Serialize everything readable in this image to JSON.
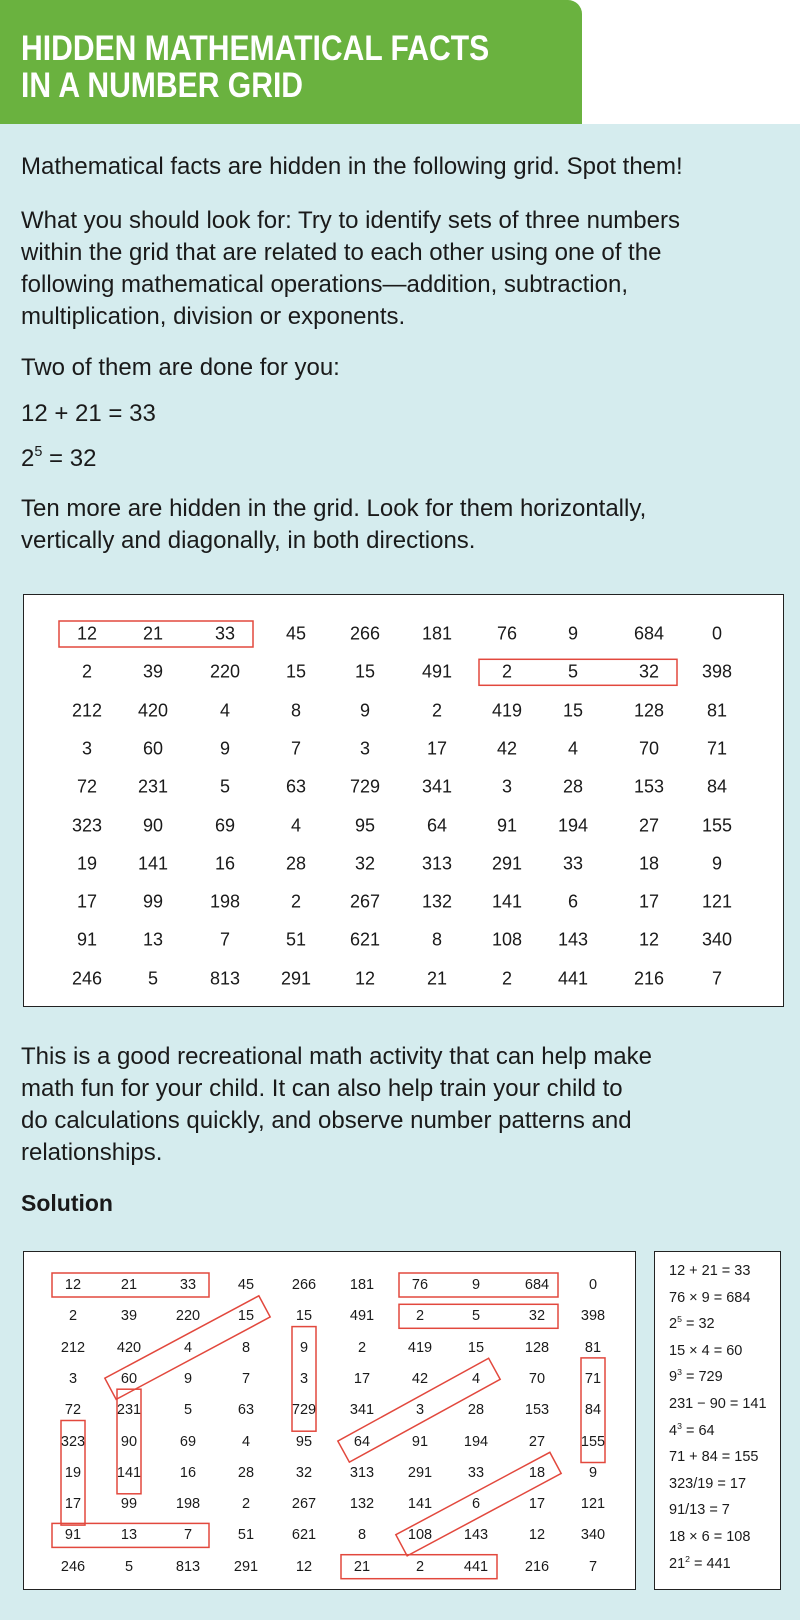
{
  "header": {
    "title_line1": "HIDDEN MATHEMATICAL FACTS",
    "title_line2": "IN A NUMBER GRID",
    "color": "#6ab23f"
  },
  "intro": {
    "p1": "Mathematical facts are hidden in the following grid. Spot them!",
    "p2_lines": [
      "What you should look for: Try to identify sets of three numbers",
      "within the grid that are related to each other using one of the",
      "following mathematical operations—addition, subtraction,",
      "multiplication, division or exponents."
    ],
    "p3": "Two of them are done for you:",
    "example1": "12 + 21 = 33",
    "example2": {
      "base": "2",
      "exp": "5",
      "rest": " = 32"
    },
    "p4_lines": [
      "Ten more are hidden in the grid. Look for them horizontally,",
      "vertically and diagonally, in both directions."
    ]
  },
  "grid": [
    [
      "12",
      "21",
      "33",
      "45",
      "266",
      "181",
      "76",
      "9",
      "684",
      "0"
    ],
    [
      "2",
      "39",
      "220",
      "15",
      "15",
      "491",
      "2",
      "5",
      "32",
      "398"
    ],
    [
      "212",
      "420",
      "4",
      "8",
      "9",
      "2",
      "419",
      "15",
      "128",
      "81"
    ],
    [
      "3",
      "60",
      "9",
      "7",
      "3",
      "17",
      "42",
      "4",
      "70",
      "71"
    ],
    [
      "72",
      "231",
      "5",
      "63",
      "729",
      "341",
      "3",
      "28",
      "153",
      "84"
    ],
    [
      "323",
      "90",
      "69",
      "4",
      "95",
      "64",
      "91",
      "194",
      "27",
      "155"
    ],
    [
      "19",
      "141",
      "16",
      "28",
      "32",
      "313",
      "291",
      "33",
      "18",
      "9"
    ],
    [
      "17",
      "99",
      "198",
      "2",
      "267",
      "132",
      "141",
      "6",
      "17",
      "121"
    ],
    [
      "91",
      "13",
      "7",
      "51",
      "621",
      "8",
      "108",
      "143",
      "12",
      "340"
    ],
    [
      "246",
      "5",
      "813",
      "291",
      "12",
      "21",
      "2",
      "441",
      "216",
      "7"
    ]
  ],
  "highlight_color": "#e2483d",
  "example_highlights": [
    [
      [
        0,
        0
      ],
      [
        0,
        2
      ]
    ],
    [
      [
        1,
        6
      ],
      [
        1,
        8
      ]
    ]
  ],
  "outro_lines": [
    "This is a good recreational math activity that can help make",
    "math fun for your child. It can also help train your child to",
    "do calculations quickly, and observe number patterns and",
    "relationships."
  ],
  "solution": {
    "heading": "Solution",
    "highlights": [
      [
        [
          0,
          0
        ],
        [
          0,
          2
        ]
      ],
      [
        [
          0,
          6
        ],
        [
          0,
          8
        ]
      ],
      [
        [
          1,
          6
        ],
        [
          1,
          8
        ]
      ],
      [
        [
          1,
          3
        ],
        [
          3,
          1
        ]
      ],
      [
        [
          2,
          4
        ],
        [
          4,
          4
        ]
      ],
      [
        [
          4,
          1
        ],
        [
          6,
          1
        ]
      ],
      [
        [
          3,
          7
        ],
        [
          5,
          5
        ]
      ],
      [
        [
          3,
          9
        ],
        [
          5,
          9
        ]
      ],
      [
        [
          5,
          0
        ],
        [
          7,
          0
        ]
      ],
      [
        [
          8,
          0
        ],
        [
          8,
          2
        ]
      ],
      [
        [
          6,
          8
        ],
        [
          8,
          6
        ]
      ],
      [
        [
          9,
          5
        ],
        [
          9,
          7
        ]
      ]
    ],
    "answers": [
      {
        "text": "12 + 21 = 33"
      },
      {
        "text": "76 × 9 = 684"
      },
      {
        "base": "2",
        "exp": "5",
        "rest": " = 32"
      },
      {
        "text": "15 × 4 = 60"
      },
      {
        "base": "9",
        "exp": "3",
        "rest": " = 729"
      },
      {
        "text": "231 − 90 = 141"
      },
      {
        "base": "4",
        "exp": "3",
        "rest": " = 64"
      },
      {
        "text": "71 + 84 = 155"
      },
      {
        "text": "323/19 = 17"
      },
      {
        "text": "91/13 = 7"
      },
      {
        "text": "18 × 6 = 108"
      },
      {
        "base": "21",
        "exp": "2",
        "rest": " = 441"
      }
    ]
  }
}
